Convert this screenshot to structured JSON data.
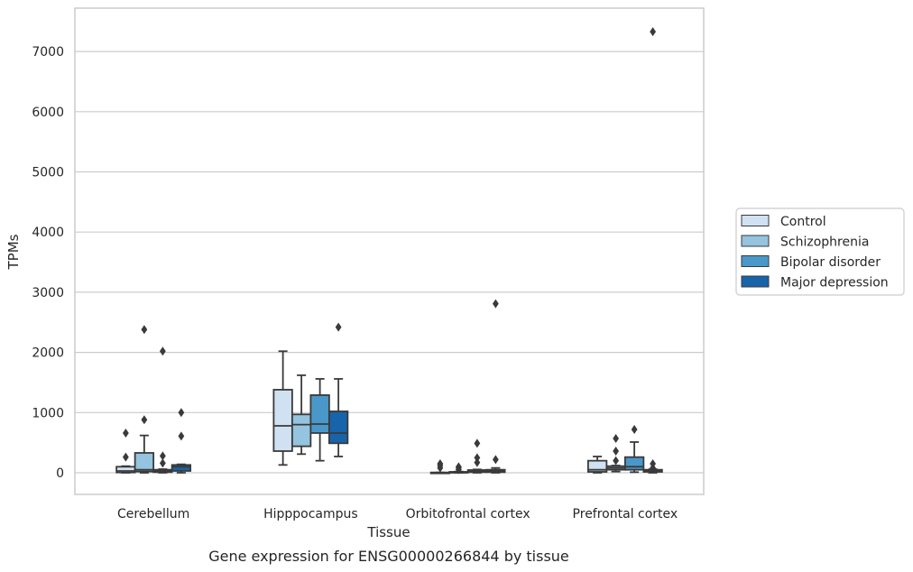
{
  "chart_data": {
    "type": "box",
    "title": "",
    "caption": "Gene expression for ENSG00000266844 by tissue",
    "xlabel": "Tissue",
    "ylabel": "TPMs",
    "ylim": [
      -350,
      7700
    ],
    "yticks": [
      0,
      1000,
      2000,
      3000,
      4000,
      5000,
      6000,
      7000
    ],
    "grid": "horizontal",
    "legend_position": "right",
    "categories": [
      "Cerebellum",
      "Hipppocampus",
      "Orbitofrontal cortex",
      "Prefrontal cortex"
    ],
    "series": [
      {
        "name": "Control",
        "color": "#d0e1f2",
        "boxes": [
          {
            "whislo": 0,
            "q1": 5,
            "med": 30,
            "q3": 100,
            "whishi": 110,
            "fliers": [
              260,
              660
            ]
          },
          {
            "whislo": 130,
            "q1": 360,
            "med": 780,
            "q3": 1380,
            "whishi": 2020,
            "fliers": []
          },
          {
            "whislo": 0,
            "q1": 0,
            "med": 0,
            "q3": 5,
            "whishi": 5,
            "fliers": [
              80,
              120,
              150
            ]
          },
          {
            "whislo": 0,
            "q1": 15,
            "med": 50,
            "q3": 200,
            "whishi": 270,
            "fliers": []
          }
        ]
      },
      {
        "name": "Schizophrenia",
        "color": "#94c4df",
        "boxes": [
          {
            "whislo": 0,
            "q1": 20,
            "med": 50,
            "q3": 330,
            "whishi": 620,
            "fliers": [
              880,
              2380
            ]
          },
          {
            "whislo": 310,
            "q1": 440,
            "med": 800,
            "q3": 970,
            "whishi": 1620,
            "fliers": []
          },
          {
            "whislo": 0,
            "q1": 5,
            "med": 10,
            "q3": 15,
            "whishi": 20,
            "fliers": [
              50,
              80,
              100
            ]
          },
          {
            "whislo": 20,
            "q1": 50,
            "med": 80,
            "q3": 110,
            "whishi": 120,
            "fliers": [
              200,
              360,
              570
            ]
          }
        ]
      },
      {
        "name": "Bipolar disorder",
        "color": "#4a98c9",
        "boxes": [
          {
            "whislo": 0,
            "q1": 10,
            "med": 30,
            "q3": 50,
            "whishi": 60,
            "fliers": [
              160,
              280,
              2020
            ]
          },
          {
            "whislo": 200,
            "q1": 660,
            "med": 810,
            "q3": 1290,
            "whishi": 1560,
            "fliers": []
          },
          {
            "whislo": 0,
            "q1": 10,
            "med": 25,
            "q3": 45,
            "whishi": 55,
            "fliers": [
              170,
              250,
              490
            ]
          },
          {
            "whislo": 10,
            "q1": 50,
            "med": 100,
            "q3": 260,
            "whishi": 510,
            "fliers": [
              720
            ]
          }
        ]
      },
      {
        "name": "Major depression",
        "color": "#1764ab",
        "boxes": [
          {
            "whislo": 0,
            "q1": 30,
            "med": 100,
            "q3": 130,
            "whishi": 140,
            "fliers": [
              610,
              1000
            ]
          },
          {
            "whislo": 270,
            "q1": 490,
            "med": 660,
            "q3": 1020,
            "whishi": 1560,
            "fliers": [
              2420
            ]
          },
          {
            "whislo": 0,
            "q1": 10,
            "med": 30,
            "q3": 50,
            "whishi": 80,
            "fliers": [
              220,
              2810
            ]
          },
          {
            "whislo": 0,
            "q1": 15,
            "med": 30,
            "q3": 50,
            "whishi": 60,
            "fliers": [
              80,
              150,
              7330
            ]
          }
        ]
      }
    ]
  }
}
